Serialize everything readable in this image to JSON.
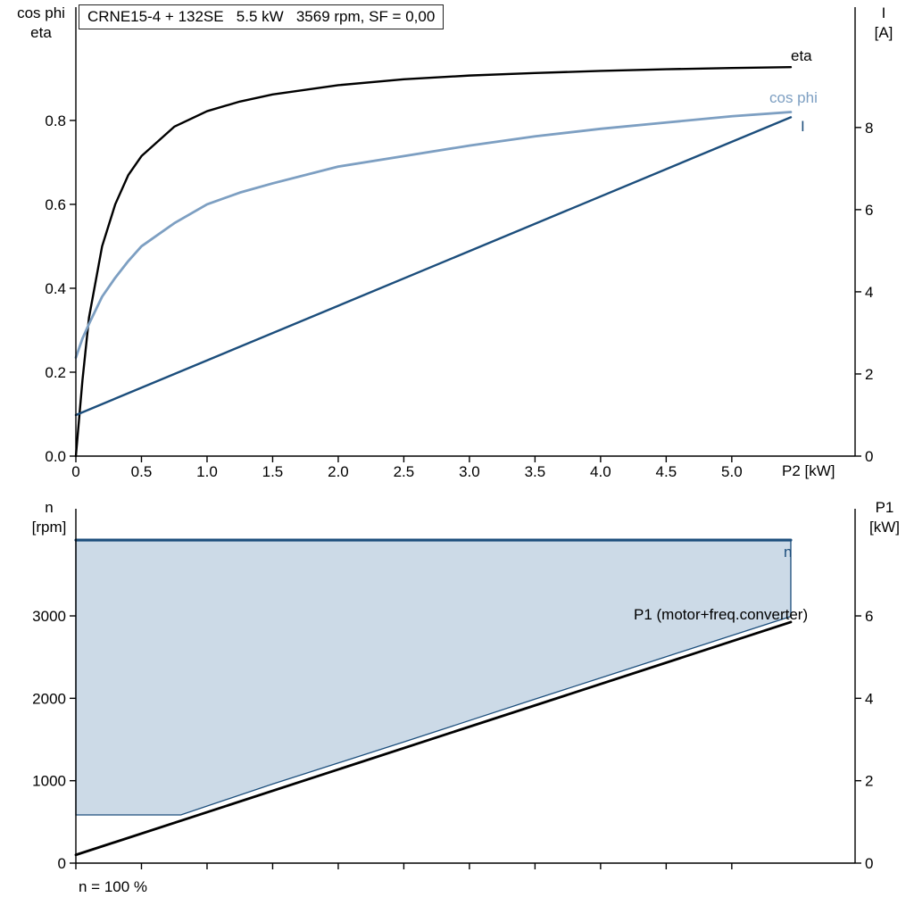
{
  "colors": {
    "black": "#000000",
    "dark_blue": "#1c4e7c",
    "steel_blue": "#7d9fc2",
    "fill_blue": "#ccdae7"
  },
  "chart_data": [
    {
      "type": "line",
      "title": "CRNE15-4 + 132SE   5.5 kW   3569 rpm, SF = 0,00",
      "x_axis": {
        "label": "P2 [kW]",
        "min": 0,
        "max": 5.94,
        "tick_values": [
          0,
          0.5,
          1,
          1.5,
          2,
          2.5,
          3,
          3.5,
          4,
          4.5,
          5
        ],
        "tick_labels": [
          "0",
          "0.5",
          "1.0",
          "1.5",
          "2.0",
          "2.5",
          "3.0",
          "3.5",
          "4.0",
          "4.5",
          "5.0"
        ]
      },
      "y_left": {
        "label_line1": "cos phi",
        "label_line2": "eta",
        "min": 0,
        "max": 1.07,
        "tick_values": [
          0,
          0.2,
          0.4,
          0.6,
          0.8
        ],
        "tick_labels": [
          "0.0",
          "0.2",
          "0.4",
          "0.6",
          "0.8"
        ]
      },
      "y_right": {
        "label_line1": "I",
        "label_line2": "[A]",
        "min": 0,
        "max": 10.93,
        "tick_values": [
          0,
          2,
          4,
          6,
          8
        ],
        "tick_labels": [
          "0",
          "2",
          "4",
          "6",
          "8"
        ]
      },
      "series": [
        {
          "name": "eta",
          "label": "eta",
          "type": "line",
          "axis": "left",
          "color": "#000000",
          "x": [
            0,
            0.05,
            0.1,
            0.2,
            0.3,
            0.4,
            0.5,
            0.75,
            1,
            1.25,
            1.5,
            2,
            2.5,
            3,
            3.5,
            4,
            4.5,
            5,
            5.45
          ],
          "y": [
            0,
            0.18,
            0.33,
            0.5,
            0.6,
            0.67,
            0.715,
            0.785,
            0.822,
            0.845,
            0.862,
            0.884,
            0.898,
            0.907,
            0.913,
            0.918,
            0.922,
            0.925,
            0.927
          ]
        },
        {
          "name": "cos phi",
          "label": "cos phi",
          "type": "line",
          "axis": "left",
          "color": "#7d9fc2",
          "x": [
            0,
            0.05,
            0.1,
            0.2,
            0.3,
            0.4,
            0.5,
            0.75,
            1,
            1.25,
            1.5,
            2,
            2.5,
            3,
            3.5,
            4,
            4.5,
            5,
            5.45
          ],
          "y": [
            0.235,
            0.28,
            0.315,
            0.38,
            0.425,
            0.465,
            0.5,
            0.555,
            0.6,
            0.628,
            0.65,
            0.69,
            0.715,
            0.74,
            0.762,
            0.78,
            0.795,
            0.81,
            0.82
          ]
        },
        {
          "name": "I",
          "label": "I",
          "type": "line",
          "axis": "right",
          "color": "#1c4e7c",
          "x": [
            0,
            5.45
          ],
          "y": [
            1.0,
            8.25
          ]
        }
      ]
    },
    {
      "type": "line",
      "footnote": "n = 100 %",
      "x_axis": {
        "label": "",
        "min": 0,
        "max": 5.94,
        "tick_values": [
          0,
          0.5,
          1,
          1.5,
          2,
          2.5,
          3,
          3.5,
          4,
          4.5,
          5
        ],
        "tick_labels": []
      },
      "y_left": {
        "label_line1": "n",
        "label_line2": "[rpm]",
        "min": 0,
        "max": 4300,
        "tick_values": [
          0,
          1000,
          2000,
          3000
        ],
        "tick_labels": [
          "0",
          "1000",
          "2000",
          "3000"
        ]
      },
      "y_right": {
        "label_line1": "P1",
        "label_line2": "[kW]",
        "min": 0,
        "max": 8.6,
        "tick_values": [
          0,
          2,
          4,
          6
        ],
        "tick_labels": [
          "0",
          "2",
          "4",
          "6"
        ]
      },
      "series": [
        {
          "name": "duty-range",
          "label": "",
          "type": "area",
          "axis": "left",
          "fill": "#ccdae7",
          "color": "#1c4e7c",
          "upper": {
            "x": [
              0,
              5.45
            ],
            "y": [
              3920,
              3920
            ]
          },
          "lower": {
            "x": [
              0,
              0.8,
              1.5,
              2.5,
              3.5,
              4.5,
              5.45
            ],
            "y": [
              585,
              585,
              960,
              1470,
              1990,
              2505,
              2993
            ]
          }
        },
        {
          "name": "P1",
          "label": "P1 (motor+freq.converter)",
          "type": "line",
          "axis": "right",
          "color": "#000000",
          "x": [
            0,
            5.45
          ],
          "y": [
            0.2,
            5.85
          ]
        },
        {
          "name": "n",
          "label": "n",
          "type": "line",
          "axis": "left",
          "color": "#1c4e7c",
          "x": [
            0,
            5.45
          ],
          "y": [
            3920,
            3920
          ]
        }
      ]
    }
  ]
}
